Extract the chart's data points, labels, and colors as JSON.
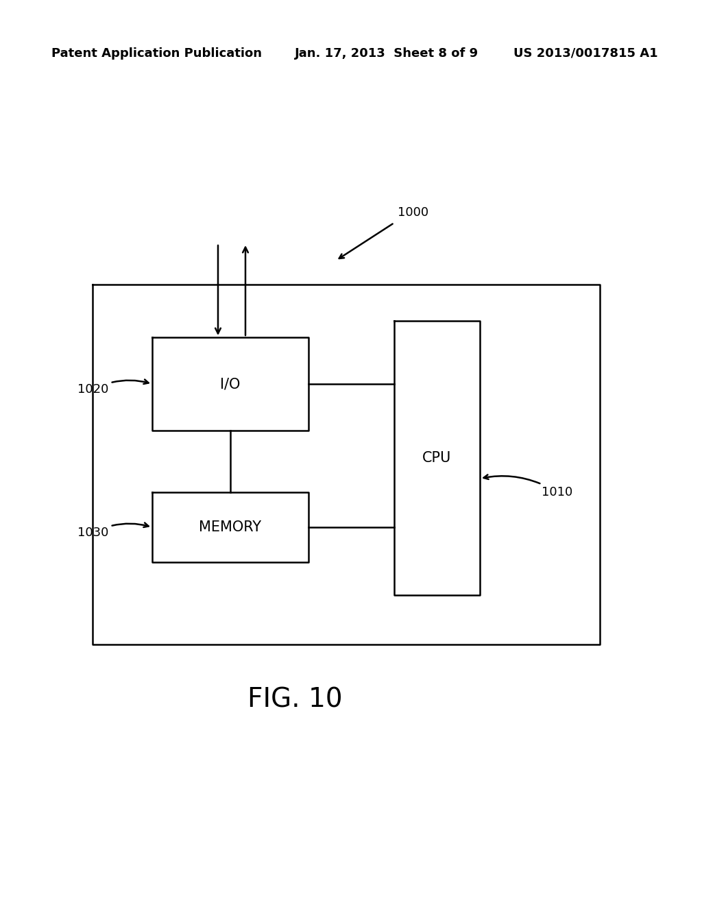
{
  "bg_color": "#ffffff",
  "header_left": "Patent Application Publication",
  "header_mid": "Jan. 17, 2013  Sheet 8 of 9",
  "header_right": "US 2013/0017815 A1",
  "fig_label": "FIG. 10",
  "label_1000": "1000",
  "label_1010": "1010",
  "label_1020": "1020",
  "label_1030": "1030",
  "line_color": "#000000",
  "text_color": "#000000",
  "font_size_header": 13,
  "font_size_label": 13,
  "font_size_box": 15,
  "font_size_fig": 28
}
